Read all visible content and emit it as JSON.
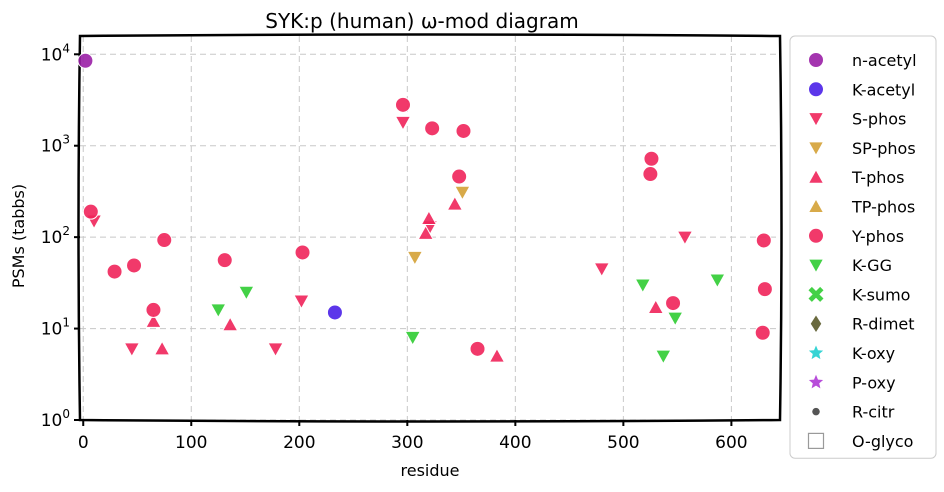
{
  "chart_data": {
    "type": "scatter",
    "title": "SYK:p (human) ω-mod diagram",
    "xlabel": "residue",
    "ylabel": "PSMs (tabbs)",
    "xlim": [
      -3,
      645
    ],
    "ylim_log10": [
      0,
      4.2
    ],
    "yscale": "log",
    "grid": true,
    "legend_placement": "right-outside",
    "x_ticks": [
      {
        "value": 0,
        "label": "0"
      },
      {
        "value": 100,
        "label": "100"
      },
      {
        "value": 200,
        "label": "200"
      },
      {
        "value": 300,
        "label": "300"
      },
      {
        "value": 400,
        "label": "400"
      },
      {
        "value": 500,
        "label": "500"
      },
      {
        "value": 600,
        "label": "600"
      }
    ],
    "y_ticks": [
      {
        "value": 1,
        "base": "10",
        "exp": "0"
      },
      {
        "value": 10,
        "base": "10",
        "exp": "1"
      },
      {
        "value": 100,
        "base": "10",
        "exp": "2"
      },
      {
        "value": 1000,
        "base": "10",
        "exp": "3"
      },
      {
        "value": 10000,
        "base": "10",
        "exp": "4"
      }
    ],
    "series": [
      {
        "name": "n-acetyl",
        "marker": "circle",
        "color": "#9a1fa6",
        "points": [
          [
            2,
            8500
          ]
        ]
      },
      {
        "name": "K-acetyl",
        "marker": "circle",
        "color": "#4a20e8",
        "points": [
          [
            233,
            15
          ]
        ]
      },
      {
        "name": "S-phos",
        "marker": "triangle-down",
        "color": "#f0245a",
        "points": [
          [
            10,
            150
          ],
          [
            45,
            6
          ],
          [
            178,
            6
          ],
          [
            202,
            20
          ],
          [
            296,
            1800
          ],
          [
            321,
            130
          ],
          [
            480,
            45
          ],
          [
            557,
            100
          ]
        ]
      },
      {
        "name": "SP-phos",
        "marker": "triangle-down",
        "color": "#d4a135",
        "points": [
          [
            307,
            60
          ],
          [
            351,
            310
          ]
        ]
      },
      {
        "name": "T-phos",
        "marker": "triangle-up",
        "color": "#f0245a",
        "points": [
          [
            65,
            12
          ],
          [
            73,
            6
          ],
          [
            136,
            11
          ],
          [
            317,
            110
          ],
          [
            320,
            160
          ],
          [
            344,
            230
          ],
          [
            383,
            5
          ],
          [
            530,
            17
          ]
        ]
      },
      {
        "name": "TP-phos",
        "marker": "triangle-up",
        "color": "#d4a135",
        "points": []
      },
      {
        "name": "Y-phos",
        "marker": "circle",
        "color": "#f0245a",
        "points": [
          [
            7,
            190
          ],
          [
            29,
            42
          ],
          [
            47,
            49
          ],
          [
            65,
            16
          ],
          [
            75,
            93
          ],
          [
            131,
            56
          ],
          [
            203,
            68
          ],
          [
            296,
            2800
          ],
          [
            323,
            1550
          ],
          [
            348,
            460
          ],
          [
            352,
            1450
          ],
          [
            365,
            6
          ],
          [
            525,
            490
          ],
          [
            526,
            720
          ],
          [
            546,
            19
          ],
          [
            629,
            9
          ],
          [
            630,
            92
          ],
          [
            631,
            27
          ]
        ]
      },
      {
        "name": "K-GG",
        "marker": "triangle-down",
        "color": "#2fcc32",
        "points": [
          [
            125,
            16
          ],
          [
            151,
            25
          ],
          [
            305,
            8
          ],
          [
            518,
            30
          ],
          [
            537,
            5
          ],
          [
            548,
            13
          ],
          [
            587,
            34
          ]
        ]
      },
      {
        "name": "K-sumo",
        "marker": "x",
        "color": "#2fcc32",
        "points": []
      },
      {
        "name": "R-dimet",
        "marker": "diamond",
        "color": "#5a5a2a",
        "points": []
      },
      {
        "name": "K-oxy",
        "marker": "star",
        "color": "#1fcfcf",
        "points": []
      },
      {
        "name": "P-oxy",
        "marker": "star",
        "color": "#b03ad6",
        "points": []
      },
      {
        "name": "R-citr",
        "marker": "dot",
        "color": "#555555",
        "points": []
      },
      {
        "name": "O-glyco",
        "marker": "square-open",
        "color": "#9a9a9a",
        "points": []
      }
    ]
  }
}
